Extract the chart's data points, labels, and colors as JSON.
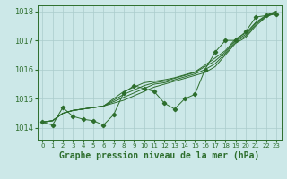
{
  "title": "Graphe pression niveau de la mer (hPa)",
  "bg_color": "#cce8e8",
  "grid_color": "#aacccc",
  "line_color": "#2d6e2d",
  "xlim": [
    -0.5,
    23.5
  ],
  "ylim": [
    1013.6,
    1018.2
  ],
  "yticks": [
    1014,
    1015,
    1016,
    1017,
    1018
  ],
  "xticks": [
    0,
    1,
    2,
    3,
    4,
    5,
    6,
    7,
    8,
    9,
    10,
    11,
    12,
    13,
    14,
    15,
    16,
    17,
    18,
    19,
    20,
    21,
    22,
    23
  ],
  "linear_series": [
    [
      1014.2,
      1014.25,
      1014.5,
      1014.6,
      1014.65,
      1014.7,
      1014.75,
      1014.85,
      1014.95,
      1015.1,
      1015.25,
      1015.4,
      1015.5,
      1015.6,
      1015.7,
      1015.8,
      1015.9,
      1016.1,
      1016.5,
      1016.9,
      1017.1,
      1017.5,
      1017.8,
      1017.95
    ],
    [
      1014.2,
      1014.25,
      1014.5,
      1014.6,
      1014.65,
      1014.7,
      1014.75,
      1014.9,
      1015.05,
      1015.2,
      1015.35,
      1015.5,
      1015.55,
      1015.65,
      1015.75,
      1015.85,
      1016.0,
      1016.2,
      1016.55,
      1016.95,
      1017.15,
      1017.55,
      1017.82,
      1017.97
    ],
    [
      1014.2,
      1014.25,
      1014.5,
      1014.6,
      1014.65,
      1014.7,
      1014.75,
      1014.95,
      1015.15,
      1015.3,
      1015.45,
      1015.55,
      1015.6,
      1015.7,
      1015.8,
      1015.9,
      1016.1,
      1016.3,
      1016.6,
      1017.0,
      1017.2,
      1017.6,
      1017.84,
      1017.99
    ],
    [
      1014.2,
      1014.25,
      1014.5,
      1014.6,
      1014.65,
      1014.7,
      1014.75,
      1015.0,
      1015.25,
      1015.4,
      1015.55,
      1015.6,
      1015.65,
      1015.72,
      1015.82,
      1015.92,
      1016.15,
      1016.4,
      1016.65,
      1017.05,
      1017.25,
      1017.62,
      1017.86,
      1018.0
    ]
  ],
  "noisy_series": [
    1014.2,
    1014.1,
    1014.7,
    1014.4,
    1014.3,
    1014.25,
    1014.1,
    1014.45,
    1015.2,
    1015.45,
    1015.35,
    1015.25,
    1014.85,
    1014.65,
    1015.0,
    1015.15,
    1016.0,
    1016.6,
    1017.0,
    1017.0,
    1017.3,
    1017.8,
    1017.85,
    1017.9
  ],
  "label_fontsize": 7,
  "tick_fontsize": 6.0
}
